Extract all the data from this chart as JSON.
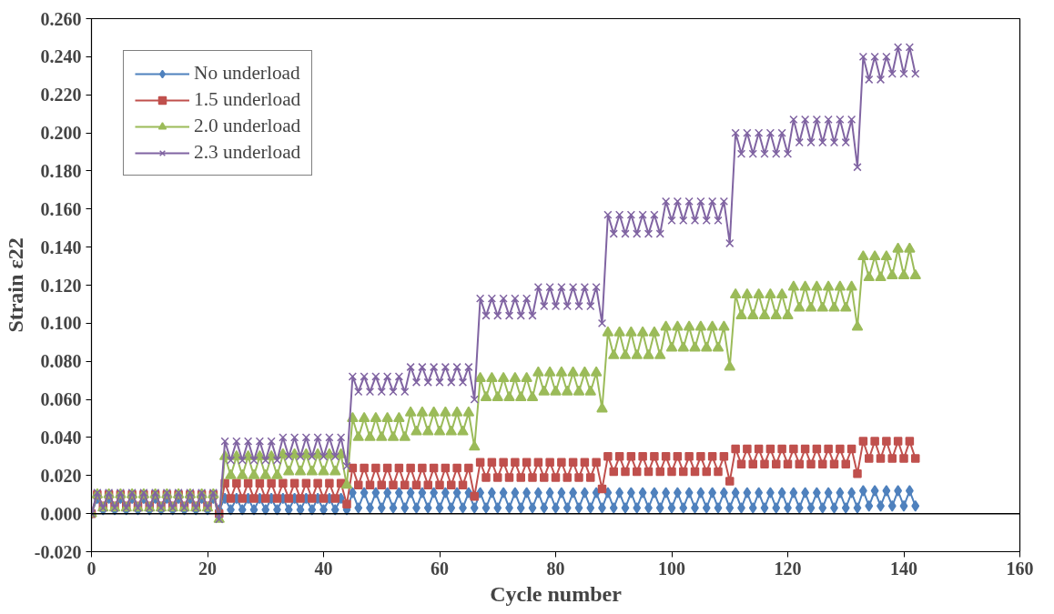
{
  "chart_data": {
    "type": "line",
    "xlabel": "Cycle number",
    "ylabel": "Strain ε22",
    "x": [
      0,
      1,
      2,
      3,
      4,
      5,
      6,
      7,
      8,
      9,
      10,
      11,
      12,
      13,
      14,
      15,
      16,
      17,
      18,
      19,
      20,
      21,
      22,
      23,
      24,
      25,
      26,
      27,
      28,
      29,
      30,
      31,
      32,
      33,
      34,
      35,
      36,
      37,
      38,
      39,
      40,
      41,
      42,
      43,
      44,
      45,
      46,
      47,
      48,
      49,
      50,
      51,
      52,
      53,
      54,
      55,
      56,
      57,
      58,
      59,
      60,
      61,
      62,
      63,
      64,
      65,
      66,
      67,
      68,
      69,
      70,
      71,
      72,
      73,
      74,
      75,
      76,
      77,
      78,
      79,
      80,
      81,
      82,
      83,
      84,
      85,
      86,
      87,
      88,
      89,
      90,
      91,
      92,
      93,
      94,
      95,
      96,
      97,
      98,
      99,
      100,
      101,
      102,
      103,
      104,
      105,
      106,
      107,
      108,
      109,
      110,
      111,
      112,
      113,
      114,
      115,
      116,
      117,
      118,
      119,
      120,
      121,
      122,
      123,
      124,
      125,
      126,
      127,
      128,
      129,
      130,
      131,
      132,
      133,
      134,
      135,
      136,
      137,
      138,
      139,
      140,
      141,
      142
    ],
    "series": [
      {
        "name": "No underload",
        "color": "#4f81bd",
        "marker": "diamond",
        "values": [
          0,
          0.008,
          0.002,
          0.008,
          0.002,
          0.008,
          0.002,
          0.008,
          0.002,
          0.008,
          0.002,
          0.008,
          0.002,
          0.008,
          0.002,
          0.008,
          0.002,
          0.008,
          0.002,
          0.008,
          0.002,
          0.008,
          0.002,
          0.008,
          0.002,
          0.008,
          0.002,
          0.008,
          0.002,
          0.008,
          0.002,
          0.008,
          0.002,
          0.008,
          0.002,
          0.008,
          0.002,
          0.008,
          0.002,
          0.008,
          0.002,
          0.008,
          0.002,
          0.008,
          0.002,
          0.011,
          0.003,
          0.011,
          0.003,
          0.011,
          0.003,
          0.011,
          0.003,
          0.011,
          0.003,
          0.011,
          0.003,
          0.011,
          0.003,
          0.011,
          0.003,
          0.011,
          0.003,
          0.011,
          0.003,
          0.011,
          0.003,
          0.011,
          0.003,
          0.011,
          0.003,
          0.011,
          0.003,
          0.011,
          0.003,
          0.011,
          0.003,
          0.011,
          0.003,
          0.011,
          0.003,
          0.011,
          0.003,
          0.011,
          0.003,
          0.011,
          0.003,
          0.011,
          0.003,
          0.011,
          0.003,
          0.011,
          0.003,
          0.011,
          0.003,
          0.011,
          0.003,
          0.011,
          0.003,
          0.011,
          0.003,
          0.011,
          0.003,
          0.011,
          0.003,
          0.011,
          0.003,
          0.011,
          0.003,
          0.011,
          0.003,
          0.011,
          0.003,
          0.011,
          0.003,
          0.011,
          0.003,
          0.011,
          0.003,
          0.011,
          0.003,
          0.011,
          0.003,
          0.011,
          0.003,
          0.011,
          0.003,
          0.011,
          0.003,
          0.011,
          0.003,
          0.011,
          0.003,
          0.012,
          0.004,
          0.012,
          0.004,
          0.012,
          0.004,
          0.012,
          0.004,
          0.012,
          0.004
        ]
      },
      {
        "name": "1.5 underload",
        "color": "#c0504d",
        "marker": "square",
        "values": [
          0,
          0.01,
          0.004,
          0.01,
          0.004,
          0.01,
          0.004,
          0.01,
          0.004,
          0.01,
          0.004,
          0.01,
          0.004,
          0.01,
          0.004,
          0.01,
          0.004,
          0.01,
          0.004,
          0.01,
          0.004,
          0.01,
          0.0,
          0.016,
          0.008,
          0.016,
          0.008,
          0.016,
          0.008,
          0.016,
          0.008,
          0.016,
          0.008,
          0.016,
          0.008,
          0.016,
          0.008,
          0.016,
          0.008,
          0.016,
          0.008,
          0.016,
          0.008,
          0.016,
          0.005,
          0.024,
          0.015,
          0.024,
          0.015,
          0.024,
          0.015,
          0.024,
          0.015,
          0.024,
          0.015,
          0.024,
          0.015,
          0.024,
          0.015,
          0.024,
          0.015,
          0.024,
          0.015,
          0.024,
          0.015,
          0.024,
          0.009,
          0.027,
          0.019,
          0.027,
          0.019,
          0.027,
          0.019,
          0.027,
          0.019,
          0.027,
          0.019,
          0.027,
          0.019,
          0.027,
          0.019,
          0.027,
          0.019,
          0.027,
          0.019,
          0.027,
          0.019,
          0.027,
          0.013,
          0.03,
          0.022,
          0.03,
          0.022,
          0.03,
          0.022,
          0.03,
          0.022,
          0.03,
          0.022,
          0.03,
          0.022,
          0.03,
          0.022,
          0.03,
          0.022,
          0.03,
          0.022,
          0.03,
          0.022,
          0.03,
          0.017,
          0.034,
          0.026,
          0.034,
          0.026,
          0.034,
          0.026,
          0.034,
          0.026,
          0.034,
          0.026,
          0.034,
          0.026,
          0.034,
          0.026,
          0.034,
          0.026,
          0.034,
          0.026,
          0.034,
          0.026,
          0.034,
          0.021,
          0.038,
          0.029,
          0.038,
          0.029,
          0.038,
          0.029,
          0.038,
          0.029,
          0.038,
          0.029
        ]
      },
      {
        "name": "2.0 underload",
        "color": "#9bbb59",
        "marker": "triangle",
        "values": [
          0,
          0.01,
          0.003,
          0.01,
          0.003,
          0.01,
          0.003,
          0.01,
          0.003,
          0.01,
          0.003,
          0.01,
          0.003,
          0.01,
          0.003,
          0.01,
          0.003,
          0.01,
          0.003,
          0.01,
          0.003,
          0.01,
          -0.003,
          0.03,
          0.02,
          0.03,
          0.02,
          0.03,
          0.02,
          0.03,
          0.02,
          0.03,
          0.02,
          0.031,
          0.022,
          0.031,
          0.022,
          0.031,
          0.022,
          0.031,
          0.022,
          0.031,
          0.022,
          0.031,
          0.015,
          0.05,
          0.04,
          0.05,
          0.04,
          0.05,
          0.04,
          0.05,
          0.04,
          0.05,
          0.04,
          0.053,
          0.043,
          0.053,
          0.043,
          0.053,
          0.043,
          0.053,
          0.043,
          0.053,
          0.043,
          0.053,
          0.035,
          0.071,
          0.061,
          0.071,
          0.061,
          0.071,
          0.061,
          0.071,
          0.061,
          0.071,
          0.061,
          0.074,
          0.064,
          0.074,
          0.064,
          0.074,
          0.064,
          0.074,
          0.064,
          0.074,
          0.064,
          0.074,
          0.055,
          0.095,
          0.083,
          0.095,
          0.083,
          0.095,
          0.083,
          0.095,
          0.083,
          0.095,
          0.083,
          0.098,
          0.087,
          0.098,
          0.087,
          0.098,
          0.087,
          0.098,
          0.087,
          0.098,
          0.087,
          0.098,
          0.077,
          0.115,
          0.104,
          0.115,
          0.104,
          0.115,
          0.104,
          0.115,
          0.104,
          0.115,
          0.104,
          0.119,
          0.108,
          0.119,
          0.108,
          0.119,
          0.108,
          0.119,
          0.108,
          0.119,
          0.108,
          0.119,
          0.098,
          0.135,
          0.124,
          0.135,
          0.124,
          0.135,
          0.125,
          0.139,
          0.125,
          0.139,
          0.125
        ]
      },
      {
        "name": "2.3 underload",
        "color": "#8064a2",
        "marker": "x",
        "values": [
          0,
          0.011,
          0.003,
          0.011,
          0.003,
          0.011,
          0.003,
          0.011,
          0.003,
          0.011,
          0.003,
          0.011,
          0.003,
          0.011,
          0.003,
          0.011,
          0.003,
          0.011,
          0.003,
          0.011,
          0.003,
          0.011,
          -0.003,
          0.038,
          0.028,
          0.038,
          0.028,
          0.038,
          0.028,
          0.038,
          0.028,
          0.038,
          0.028,
          0.04,
          0.03,
          0.04,
          0.03,
          0.04,
          0.03,
          0.04,
          0.03,
          0.04,
          0.03,
          0.04,
          0.025,
          0.072,
          0.064,
          0.072,
          0.064,
          0.072,
          0.064,
          0.072,
          0.064,
          0.072,
          0.064,
          0.077,
          0.069,
          0.077,
          0.069,
          0.077,
          0.069,
          0.077,
          0.069,
          0.077,
          0.069,
          0.077,
          0.06,
          0.113,
          0.104,
          0.113,
          0.104,
          0.113,
          0.104,
          0.113,
          0.104,
          0.113,
          0.104,
          0.119,
          0.109,
          0.119,
          0.109,
          0.119,
          0.109,
          0.119,
          0.109,
          0.119,
          0.109,
          0.119,
          0.1,
          0.157,
          0.147,
          0.157,
          0.147,
          0.157,
          0.147,
          0.157,
          0.147,
          0.157,
          0.147,
          0.164,
          0.154,
          0.164,
          0.154,
          0.164,
          0.154,
          0.164,
          0.154,
          0.164,
          0.154,
          0.164,
          0.142,
          0.2,
          0.189,
          0.2,
          0.189,
          0.2,
          0.189,
          0.2,
          0.189,
          0.2,
          0.189,
          0.207,
          0.195,
          0.207,
          0.195,
          0.207,
          0.195,
          0.207,
          0.195,
          0.207,
          0.195,
          0.207,
          0.182,
          0.24,
          0.228,
          0.24,
          0.228,
          0.24,
          0.231,
          0.245,
          0.231,
          0.245,
          0.231
        ]
      }
    ],
    "xlim": [
      0,
      160
    ],
    "xticks": [
      0,
      20,
      40,
      60,
      80,
      100,
      120,
      140,
      160
    ],
    "ylim": [
      -0.02,
      0.26
    ],
    "yticks": [
      {
        "value": -0.02,
        "label": "-0.020"
      },
      {
        "value": 0,
        "label": "0.000"
      },
      {
        "value": 0.02,
        "label": "0.020"
      },
      {
        "value": 0.04,
        "label": "0.040"
      },
      {
        "value": 0.06,
        "label": "0.060"
      },
      {
        "value": 0.08,
        "label": "0.080"
      },
      {
        "value": 0.1,
        "label": "0.100"
      },
      {
        "value": 0.12,
        "label": "0.120"
      },
      {
        "value": 0.14,
        "label": "0.140"
      },
      {
        "value": 0.16,
        "label": "0.160"
      },
      {
        "value": 0.18,
        "label": "0.180"
      },
      {
        "value": 0.2,
        "label": "0.200"
      },
      {
        "value": 0.22,
        "label": "0.220"
      },
      {
        "value": 0.24,
        "label": "0.240"
      },
      {
        "value": 0.26,
        "label": "0.260"
      }
    ],
    "ref_lines": [
      {
        "axis": "y",
        "value": 0,
        "color": "#000000"
      }
    ],
    "grid": false,
    "legend": "top left",
    "line_style": "solid"
  }
}
